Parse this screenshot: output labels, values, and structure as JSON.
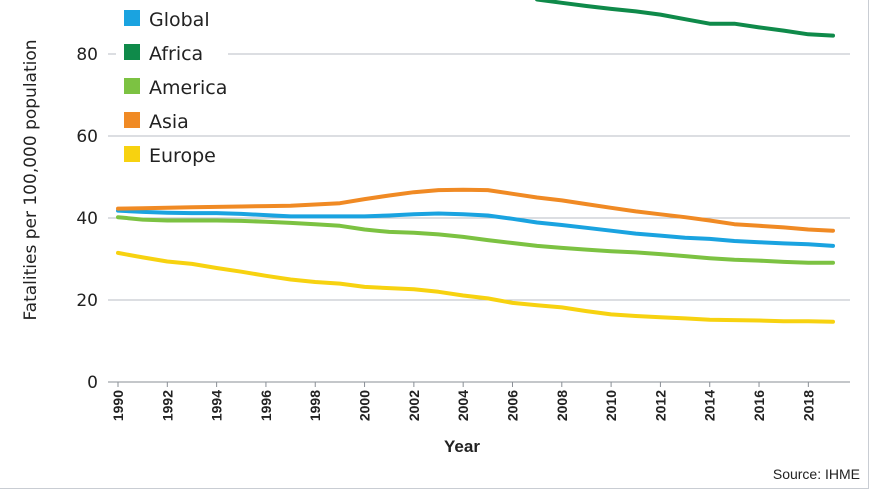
{
  "chart_data": {
    "type": "line",
    "title": "",
    "xlabel": "Year",
    "ylabel": "Fatalities per 100,000 population",
    "ylim": [
      0,
      90
    ],
    "yticks": [
      0,
      20,
      40,
      60,
      80
    ],
    "xticks": [
      1990,
      1992,
      1994,
      1996,
      1998,
      2000,
      2002,
      2004,
      2006,
      2008,
      2010,
      2012,
      2014,
      2016,
      2018
    ],
    "x": [
      1990,
      1991,
      1992,
      1993,
      1994,
      1995,
      1996,
      1997,
      1998,
      1999,
      2000,
      2001,
      2002,
      2003,
      2004,
      2005,
      2006,
      2007,
      2008,
      2009,
      2010,
      2011,
      2012,
      2013,
      2014,
      2015,
      2016,
      2017,
      2018,
      2019
    ],
    "series": [
      {
        "name": "Global",
        "color": "#1aa3e0",
        "values": [
          41.8,
          41.5,
          41.3,
          41.2,
          41.2,
          41.0,
          40.7,
          40.4,
          40.4,
          40.4,
          40.4,
          40.6,
          40.9,
          41.1,
          40.9,
          40.6,
          39.8,
          38.9,
          38.3,
          37.6,
          36.9,
          36.2,
          35.7,
          35.2,
          34.9,
          34.4,
          34.1,
          33.8,
          33.6,
          33.2
        ]
      },
      {
        "name": "Africa",
        "color": "#0f8a4a",
        "values": [
          null,
          null,
          null,
          null,
          null,
          null,
          null,
          null,
          null,
          null,
          null,
          null,
          null,
          null,
          null,
          null,
          null,
          93.3,
          92.5,
          91.7,
          91.0,
          90.4,
          89.6,
          88.5,
          87.4,
          87.4,
          86.5,
          85.7,
          84.8,
          84.5
        ]
      },
      {
        "name": "America",
        "color": "#7cc242",
        "values": [
          40.2,
          39.6,
          39.4,
          39.4,
          39.4,
          39.3,
          39.1,
          38.8,
          38.5,
          38.1,
          37.2,
          36.6,
          36.4,
          36.0,
          35.4,
          34.6,
          33.9,
          33.2,
          32.7,
          32.3,
          31.9,
          31.6,
          31.2,
          30.7,
          30.2,
          29.8,
          29.6,
          29.3,
          29.1,
          29.1
        ]
      },
      {
        "name": "Asia",
        "color": "#f08a24",
        "values": [
          42.3,
          42.4,
          42.5,
          42.6,
          42.7,
          42.8,
          42.9,
          43.0,
          43.3,
          43.6,
          44.6,
          45.5,
          46.3,
          46.8,
          46.9,
          46.8,
          45.9,
          45.0,
          44.3,
          43.4,
          42.5,
          41.6,
          40.9,
          40.2,
          39.4,
          38.5,
          38.1,
          37.7,
          37.2,
          36.9
        ]
      },
      {
        "name": "Europe",
        "color": "#f7d210",
        "values": [
          31.5,
          30.4,
          29.4,
          28.8,
          27.8,
          26.9,
          25.9,
          25.0,
          24.4,
          24.0,
          23.2,
          22.9,
          22.6,
          22.0,
          21.1,
          20.4,
          19.3,
          18.7,
          18.2,
          17.3,
          16.5,
          16.1,
          15.8,
          15.5,
          15.2,
          15.1,
          15.0,
          14.8,
          14.8,
          14.7
        ]
      }
    ]
  },
  "source": "Source: IHME"
}
